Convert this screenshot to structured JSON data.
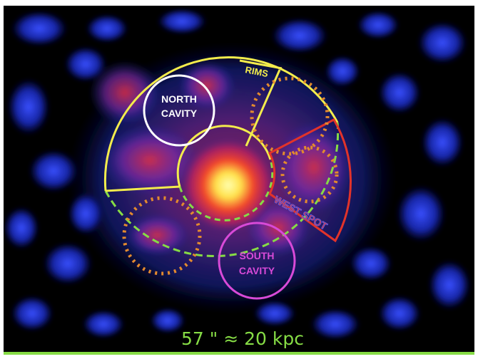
{
  "labels": {
    "north_cavity_line1": "NORTH",
    "north_cavity_line2": "CAVITY",
    "south_cavity_line1": "SOUTH",
    "south_cavity_line2": "CAVITY",
    "rims": "RIMS",
    "west_spot": "WEST SPOT"
  },
  "scale_bar": {
    "text": "57 \" ≈ 20 kpc"
  },
  "colors": {
    "background": "#000000",
    "frame": "#ffffff",
    "yellow_region": "#f3ec4c",
    "green_dashed": "#86dc45",
    "orange_dotted": "#e38a2e",
    "red_region": "#e2332a",
    "north_cavity": "#ffffff",
    "south_cavity": "#d84ad8",
    "rims_label": "#f3ec4c",
    "west_spot_label_fill": "#e2332a",
    "west_spot_label_stroke": "#4f63ff",
    "scale_bar": "#86dc45"
  }
}
